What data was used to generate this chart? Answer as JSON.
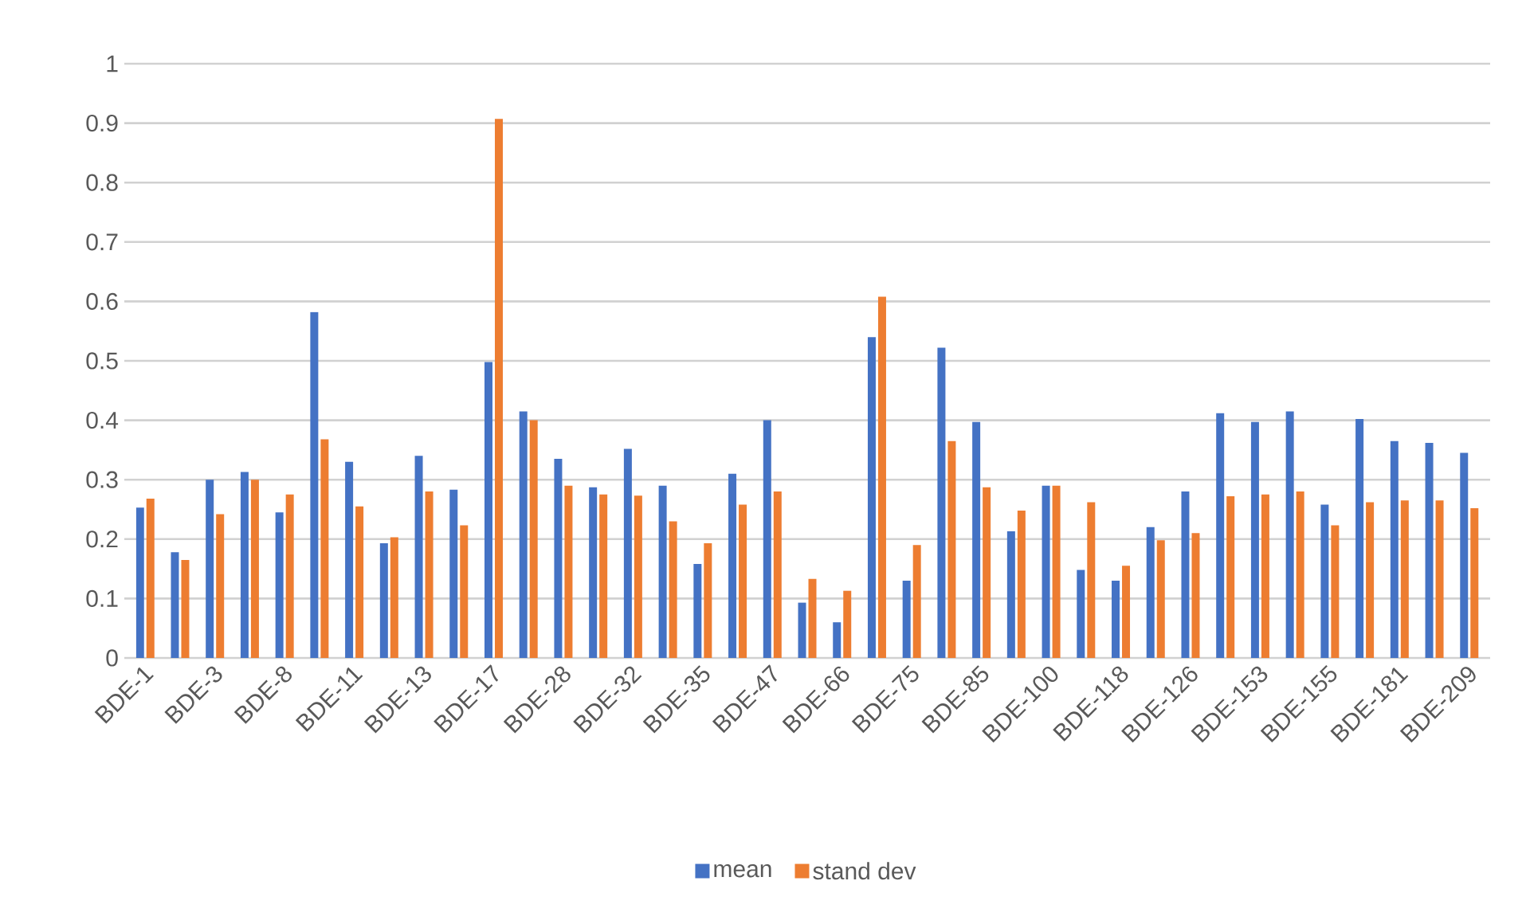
{
  "chart_data": {
    "type": "bar",
    "categories": [
      "BDE-1",
      null,
      "BDE-3",
      null,
      "BDE-8",
      null,
      "BDE-11",
      null,
      "BDE-13",
      null,
      "BDE-17",
      null,
      "BDE-28",
      null,
      "BDE-32",
      null,
      "BDE-35",
      null,
      "BDE-47",
      null,
      "BDE-66",
      null,
      "BDE-75",
      null,
      "BDE-85",
      null,
      "BDE-100",
      null,
      "BDE-118",
      null,
      "BDE-126",
      null,
      "BDE-153",
      null,
      "BDE-155",
      null,
      "BDE-181",
      null,
      "BDE-209"
    ],
    "series": [
      {
        "name": "mean",
        "color": "#4472c4",
        "values": [
          0.253,
          0.178,
          0.3,
          0.313,
          0.245,
          0.582,
          0.33,
          0.193,
          0.34,
          0.283,
          0.498,
          0.415,
          0.335,
          0.287,
          0.352,
          0.29,
          0.158,
          0.31,
          0.4,
          0.093,
          0.06,
          0.54,
          0.13,
          0.522,
          0.397,
          0.213,
          0.29,
          0.148,
          0.13,
          0.22,
          0.28,
          0.412,
          0.397,
          0.415,
          0.258,
          0.402,
          0.365,
          0.362,
          0.345
        ]
      },
      {
        "name": "stand dev",
        "color": "#ed7d31",
        "values": [
          0.268,
          0.165,
          0.242,
          0.3,
          0.275,
          0.368,
          0.255,
          0.203,
          0.28,
          0.223,
          0.907,
          0.4,
          0.29,
          0.275,
          0.273,
          0.23,
          0.193,
          0.258,
          0.28,
          0.133,
          0.113,
          0.608,
          0.19,
          0.365,
          0.287,
          0.248,
          0.29,
          0.262,
          0.155,
          0.198,
          0.21,
          0.272,
          0.275,
          0.28,
          0.223,
          0.262,
          0.265,
          0.265,
          0.252
        ]
      }
    ],
    "ylim": [
      0,
      1
    ],
    "yticks": [
      0,
      0.1,
      0.2,
      0.3,
      0.4,
      0.5,
      0.6,
      0.7,
      0.8,
      0.9,
      1
    ],
    "grid": "y",
    "legend": "bottom"
  }
}
